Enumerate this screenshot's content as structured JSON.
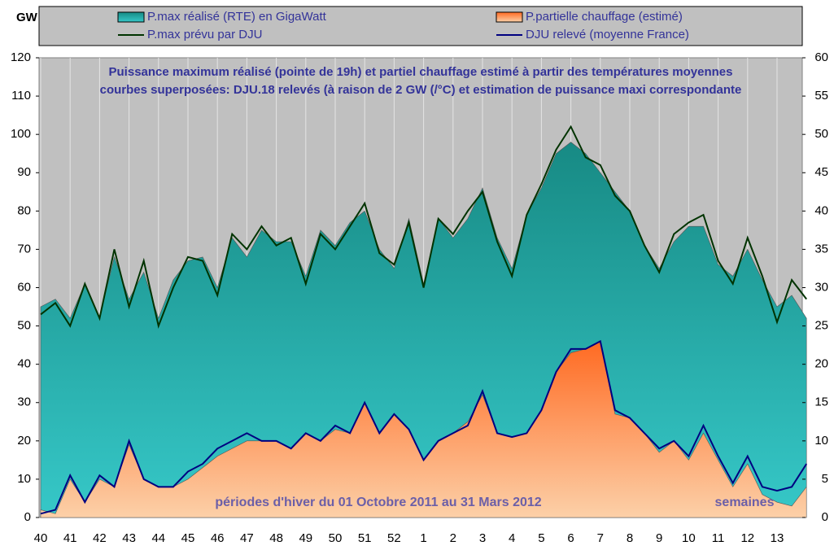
{
  "chart_data": {
    "type": "area",
    "title": "Puissance maximum réalisé (pointe de 19h) et partiel chauffage estimé à partir des températures moyennes",
    "subtitle": "courbes superposées: DJU.18 relevés (à raison de 2 GW (/°C) et estimation de puissance maxi correspondante",
    "y_label": "GW",
    "annotations": [
      "périodes d'hiver du 01 Octobre 2011 au 31 Mars 2012",
      "semaines"
    ],
    "x": [
      0,
      0.5,
      1,
      1.5,
      2,
      2.5,
      3,
      3.5,
      4,
      4.5,
      5,
      5.5,
      6,
      6.5,
      7,
      7.5,
      8,
      8.5,
      9,
      9.5,
      10,
      10.5,
      11,
      11.5,
      12,
      12.5,
      13,
      13.5,
      14,
      14.5,
      15,
      15.5,
      16,
      16.5,
      17,
      17.5,
      18,
      18.5,
      19,
      19.5,
      20,
      20.5,
      21,
      21.5,
      22,
      22.5,
      23,
      23.5,
      24,
      24.5,
      25,
      25.5,
      26
    ],
    "xlim": [
      0,
      26
    ],
    "xticks": [
      {
        "value": 0,
        "label": "40"
      },
      {
        "value": 1,
        "label": "41"
      },
      {
        "value": 2,
        "label": "42"
      },
      {
        "value": 3,
        "label": "43"
      },
      {
        "value": 4,
        "label": "44"
      },
      {
        "value": 5,
        "label": "45"
      },
      {
        "value": 6,
        "label": "46"
      },
      {
        "value": 7,
        "label": "47"
      },
      {
        "value": 8,
        "label": "48"
      },
      {
        "value": 9,
        "label": "49"
      },
      {
        "value": 10,
        "label": "50"
      },
      {
        "value": 11,
        "label": "51"
      },
      {
        "value": 12,
        "label": "52"
      },
      {
        "value": 13,
        "label": "1"
      },
      {
        "value": 14,
        "label": "2"
      },
      {
        "value": 15,
        "label": "3"
      },
      {
        "value": 16,
        "label": "4"
      },
      {
        "value": 17,
        "label": "5"
      },
      {
        "value": 18,
        "label": "6"
      },
      {
        "value": 19,
        "label": "7"
      },
      {
        "value": 20,
        "label": "8"
      },
      {
        "value": 21,
        "label": "9"
      },
      {
        "value": 22,
        "label": "10"
      },
      {
        "value": 23,
        "label": "11"
      },
      {
        "value": 24,
        "label": "12"
      },
      {
        "value": 25,
        "label": "13"
      }
    ],
    "ylim": [
      0,
      120
    ],
    "yticks": [
      0,
      10,
      20,
      30,
      40,
      50,
      60,
      70,
      80,
      90,
      100,
      110,
      120
    ],
    "y2lim": [
      0,
      60
    ],
    "y2ticks": [
      0,
      5,
      10,
      15,
      20,
      25,
      30,
      35,
      40,
      45,
      50,
      55,
      60
    ],
    "grid": true,
    "series": [
      {
        "name": "P.max réalisé (RTE) en GigaWatt",
        "kind": "area",
        "color": "#178a84",
        "values": [
          55,
          57,
          52,
          61,
          52,
          68,
          57,
          64,
          52,
          62,
          67,
          68,
          60,
          73,
          68,
          75,
          72,
          72,
          63,
          75,
          71,
          77,
          80,
          70,
          65,
          78,
          61,
          78,
          73,
          78,
          86,
          73,
          65,
          79,
          86,
          95,
          98,
          95,
          90,
          85,
          80,
          71,
          65,
          72,
          76,
          76,
          66,
          63,
          70,
          62,
          55,
          58,
          52
        ]
      },
      {
        "name": "P.partielle chauffage (estimé)",
        "kind": "area",
        "color": "#ff6a22",
        "values": [
          2,
          1,
          10,
          4,
          10,
          8,
          19,
          10,
          8,
          8,
          10,
          13,
          16,
          18,
          20,
          20,
          20,
          18,
          22,
          20,
          23,
          22,
          30,
          22,
          27,
          23,
          15,
          20,
          22,
          25,
          32,
          22,
          21,
          22,
          28,
          38,
          43,
          44,
          46,
          27,
          26,
          22,
          17,
          20,
          15,
          22,
          15,
          8,
          14,
          6,
          4,
          3,
          8
        ]
      },
      {
        "name": "P.max prévu par DJU",
        "kind": "line",
        "color": "#003300",
        "values": [
          53,
          56,
          50,
          61,
          52,
          70,
          55,
          67,
          50,
          60,
          68,
          67,
          58,
          74,
          70,
          76,
          71,
          73,
          61,
          74,
          70,
          76,
          82,
          69,
          66,
          77,
          60,
          78,
          74,
          80,
          85,
          72,
          63,
          79,
          87,
          96,
          102,
          94,
          92,
          84,
          80,
          71,
          64,
          74,
          77,
          79,
          67,
          61,
          73,
          63,
          51,
          62,
          57
        ]
      },
      {
        "name": "DJU relevé (moyenne France)",
        "kind": "line",
        "color": "#000080",
        "axis": "y2",
        "values": [
          0.5,
          1,
          5.5,
          2,
          5.5,
          4,
          10,
          5,
          4,
          4,
          6,
          7,
          9,
          10,
          11,
          10,
          10,
          9,
          11,
          10,
          12,
          11,
          15,
          11,
          13.5,
          11.5,
          7.5,
          10,
          11,
          12,
          16.5,
          11,
          10.5,
          11,
          14,
          19,
          22,
          22,
          23,
          14,
          13,
          11,
          9,
          10,
          8,
          12,
          8,
          4.5,
          8,
          4,
          3.5,
          4,
          7
        ]
      }
    ]
  }
}
